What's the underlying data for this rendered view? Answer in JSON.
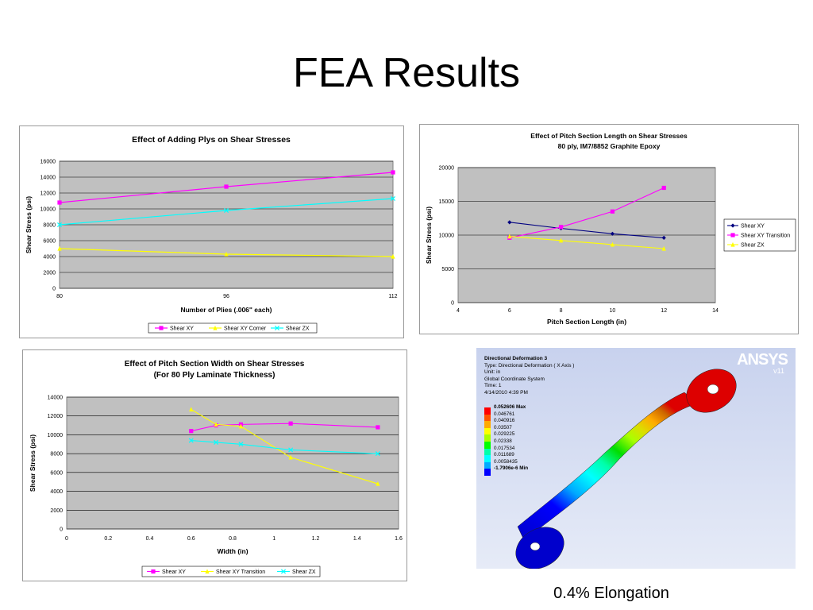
{
  "slide": {
    "title": "FEA Results",
    "caption": "0.4% Elongation"
  },
  "colors": {
    "plot_area": "#c0c0c0",
    "grid": "#000000",
    "magenta": "#ff00ff",
    "yellow": "#ffff00",
    "cyan": "#00ffff",
    "navy": "#000080",
    "ansys_bg_top": "#c8d2ee",
    "ansys_bg_bottom": "#e6ebf7"
  },
  "chart_data": [
    {
      "type": "line",
      "title": "Effect of Adding Plys on Shear Stresses",
      "subtitle": "",
      "xlabel": "Number of Plies (.006\" each)",
      "ylabel": "Shear Stress (psi)",
      "x_categories": [
        "80",
        "96",
        "112"
      ],
      "ylim": [
        0,
        16000
      ],
      "yticks": [
        0,
        2000,
        4000,
        6000,
        8000,
        10000,
        12000,
        14000,
        16000
      ],
      "grid": true,
      "legend": "bottom",
      "series": [
        {
          "name": "Shear XY",
          "color": "#ff00ff",
          "marker": "square",
          "x": [
            80,
            96,
            112
          ],
          "values": [
            10800,
            12800,
            14600
          ]
        },
        {
          "name": "Shear XY Corner",
          "color": "#ffff00",
          "marker": "triangle",
          "x": [
            80,
            96,
            112
          ],
          "values": [
            5000,
            4300,
            4000
          ]
        },
        {
          "name": "Shear ZX",
          "color": "#00ffff",
          "marker": "x",
          "x": [
            80,
            96,
            112
          ],
          "values": [
            8000,
            9800,
            11300
          ]
        }
      ]
    },
    {
      "type": "line",
      "title": "Effect of Pitch Section Length on Shear Stresses",
      "subtitle": "80 ply, IM7/8852 Graphite Epoxy",
      "xlabel": "Pitch Section Length (in)",
      "ylabel": "Shear Stress (psi)",
      "xlim": [
        4,
        14
      ],
      "xticks": [
        4,
        6,
        8,
        10,
        12,
        14
      ],
      "ylim": [
        0,
        20000
      ],
      "yticks": [
        0,
        5000,
        10000,
        15000,
        20000
      ],
      "grid": true,
      "legend": "right",
      "series": [
        {
          "name": "Shear XY",
          "color": "#000080",
          "marker": "diamond",
          "x": [
            6,
            8,
            10,
            12
          ],
          "values": [
            11900,
            11000,
            10200,
            9600
          ]
        },
        {
          "name": "Shear XY Transition",
          "color": "#ff00ff",
          "marker": "square",
          "x": [
            6,
            8,
            10,
            12
          ],
          "values": [
            9600,
            11200,
            13500,
            17000
          ]
        },
        {
          "name": "Shear ZX",
          "color": "#ffff00",
          "marker": "triangle",
          "x": [
            6,
            8,
            10,
            12
          ],
          "values": [
            9800,
            9200,
            8600,
            8000
          ]
        }
      ]
    },
    {
      "type": "line",
      "title": "Effect of Pitch Section Width on Shear Stresses",
      "subtitle": "(For 80 Ply Laminate Thickness)",
      "xlabel": "Width (in)",
      "ylabel": "Shear Stress (psi)",
      "xlim": [
        0,
        1.6
      ],
      "xticks": [
        0,
        0.2,
        0.4,
        0.6,
        0.8,
        1,
        1.2,
        1.4,
        1.6
      ],
      "ylim": [
        0,
        14000
      ],
      "yticks": [
        0,
        2000,
        4000,
        6000,
        8000,
        10000,
        12000,
        14000
      ],
      "grid": true,
      "legend": "bottom",
      "series": [
        {
          "name": "Shear XY",
          "color": "#ff00ff",
          "marker": "square",
          "x": [
            0.6,
            0.72,
            0.84,
            1.08,
            1.5
          ],
          "values": [
            10400,
            11000,
            11100,
            11200,
            10800
          ]
        },
        {
          "name": "Shear XY Transition",
          "color": "#ffff00",
          "marker": "triangle",
          "x": [
            0.6,
            0.72,
            0.84,
            1.08,
            1.5
          ],
          "values": [
            12700,
            11100,
            10900,
            7600,
            4800
          ]
        },
        {
          "name": "Shear ZX",
          "color": "#00ffff",
          "marker": "x",
          "x": [
            0.6,
            0.72,
            0.84,
            1.08,
            1.5
          ],
          "values": [
            9400,
            9200,
            9000,
            8400,
            8000
          ]
        }
      ]
    }
  ],
  "ansys": {
    "logo": "ANSYS",
    "version": "v11",
    "title": "Directional Deformation 3",
    "type": "Type: Directional Deformation ( X Axis )",
    "unit": "Unit: in",
    "coordinate": "Global Coordinate System",
    "time": "Time: 1",
    "date": "4/14/2010 4:39 PM",
    "legend": [
      {
        "label": "0.052606 Max",
        "color": "#ff0000",
        "bold": true
      },
      {
        "label": "0.046761",
        "color": "#ff5500",
        "bold": false
      },
      {
        "label": "0.040916",
        "color": "#ffaa00",
        "bold": false
      },
      {
        "label": "0.03507",
        "color": "#ffff00",
        "bold": false
      },
      {
        "label": "0.029225",
        "color": "#aaff00",
        "bold": false
      },
      {
        "label": "0.02338",
        "color": "#00ff00",
        "bold": false
      },
      {
        "label": "0.017534",
        "color": "#00ffaa",
        "bold": false
      },
      {
        "label": "0.011689",
        "color": "#00ffff",
        "bold": false
      },
      {
        "label": "0.0058435",
        "color": "#00aaff",
        "bold": false
      },
      {
        "label": "-1.7906e-6 Min",
        "color": "#0000ff",
        "bold": true
      }
    ]
  }
}
